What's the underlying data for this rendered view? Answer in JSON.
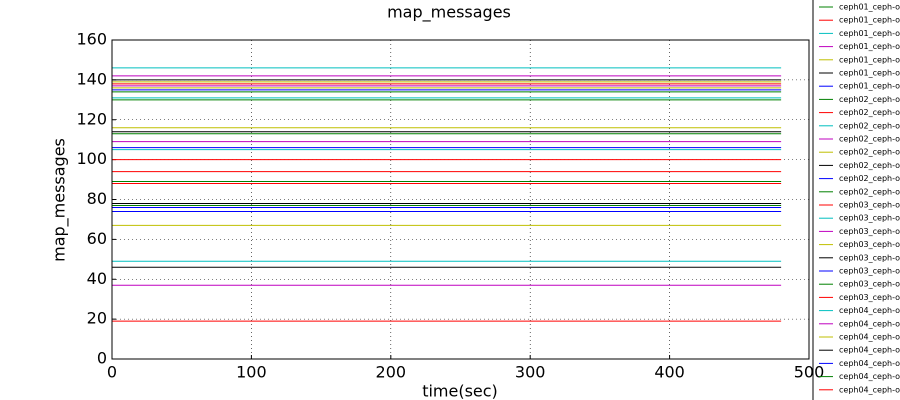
{
  "chart_data": {
    "type": "line",
    "title": "map_messages",
    "xlabel": "time(sec)",
    "ylabel": "map_messages",
    "x": [
      0,
      480
    ],
    "xlim": [
      0,
      500
    ],
    "ylim": [
      0,
      160
    ],
    "xticks": [
      0,
      100,
      200,
      300,
      400,
      500
    ],
    "yticks": [
      0,
      20,
      40,
      60,
      80,
      100,
      120,
      140,
      160
    ],
    "grid": true,
    "series": [
      {
        "name": "ceph01_ceph-o",
        "color": "#008000",
        "values": [
          134,
          134
        ]
      },
      {
        "name": "ceph01_ceph-o",
        "color": "#ff0000",
        "values": [
          138,
          138
        ]
      },
      {
        "name": "ceph01_ceph-o",
        "color": "#00bfbf",
        "values": [
          146,
          146
        ]
      },
      {
        "name": "ceph01_ceph-o",
        "color": "#bf00bf",
        "values": [
          142,
          142
        ]
      },
      {
        "name": "ceph01_ceph-o",
        "color": "#bfbf00",
        "values": [
          139,
          139
        ]
      },
      {
        "name": "ceph01_ceph-o",
        "color": "#000000",
        "values": [
          140,
          140
        ]
      },
      {
        "name": "ceph01_ceph-o",
        "color": "#0000ff",
        "values": [
          135,
          135
        ]
      },
      {
        "name": "ceph02_ceph-o",
        "color": "#008000",
        "values": [
          130,
          130
        ]
      },
      {
        "name": "ceph02_ceph-o",
        "color": "#ff0000",
        "values": [
          100,
          100
        ]
      },
      {
        "name": "ceph02_ceph-o",
        "color": "#00bfbf",
        "values": [
          131,
          131
        ]
      },
      {
        "name": "ceph02_ceph-o",
        "color": "#bf00bf",
        "values": [
          137,
          137
        ]
      },
      {
        "name": "ceph02_ceph-o",
        "color": "#bfbf00",
        "values": [
          116,
          116
        ]
      },
      {
        "name": "ceph02_ceph-o",
        "color": "#000000",
        "values": [
          114,
          114
        ]
      },
      {
        "name": "ceph02_ceph-o",
        "color": "#0000ff",
        "values": [
          106,
          106
        ]
      },
      {
        "name": "ceph02_ceph-o",
        "color": "#008000",
        "values": [
          113,
          113
        ]
      },
      {
        "name": "ceph03_ceph-o",
        "color": "#ff0000",
        "values": [
          94,
          94
        ]
      },
      {
        "name": "ceph03_ceph-o",
        "color": "#00bfbf",
        "values": [
          105,
          105
        ]
      },
      {
        "name": "ceph03_ceph-o",
        "color": "#bf00bf",
        "values": [
          109,
          109
        ]
      },
      {
        "name": "ceph03_ceph-o",
        "color": "#bfbf00",
        "values": [
          67,
          67
        ]
      },
      {
        "name": "ceph03_ceph-o",
        "color": "#000000",
        "values": [
          78,
          78
        ]
      },
      {
        "name": "ceph03_ceph-o",
        "color": "#0000ff",
        "values": [
          76,
          76
        ]
      },
      {
        "name": "ceph03_ceph-o",
        "color": "#008000",
        "values": [
          89,
          89
        ]
      },
      {
        "name": "ceph03_ceph-o",
        "color": "#ff0000",
        "values": [
          88,
          88
        ]
      },
      {
        "name": "ceph04_ceph-o",
        "color": "#00bfbf",
        "values": [
          49,
          49
        ]
      },
      {
        "name": "ceph04_ceph-o",
        "color": "#bf00bf",
        "values": [
          37,
          37
        ]
      },
      {
        "name": "ceph04_ceph-o",
        "color": "#bfbf00",
        "values": [
          136,
          136
        ]
      },
      {
        "name": "ceph04_ceph-o",
        "color": "#000000",
        "values": [
          46,
          46
        ]
      },
      {
        "name": "ceph04_ceph-o",
        "color": "#0000ff",
        "values": [
          74,
          74
        ]
      },
      {
        "name": "ceph04_ceph-o",
        "color": "#008000",
        "values": [
          77,
          77
        ]
      },
      {
        "name": "ceph04_ceph-o",
        "color": "#ff0000",
        "values": [
          19,
          19
        ]
      }
    ]
  }
}
